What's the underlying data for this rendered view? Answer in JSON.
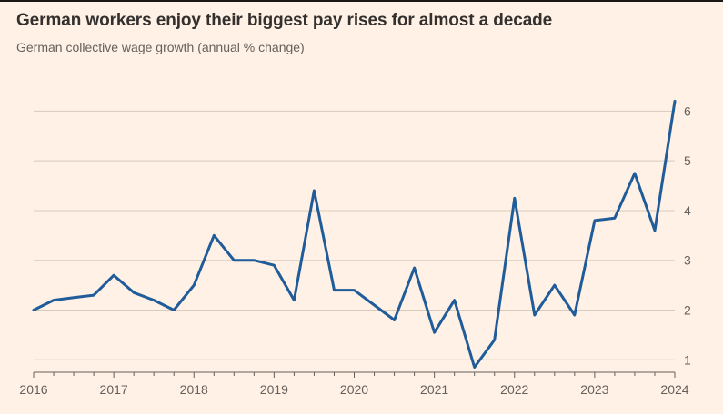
{
  "header": {
    "title": "German workers enjoy their biggest pay rises for almost a decade",
    "subtitle": "German collective wage growth (annual % change)"
  },
  "chart_data": {
    "type": "line",
    "title": "German workers enjoy their biggest pay rises for almost a decade",
    "subtitle": "German collective wage growth (annual % change)",
    "x_unit": "quarter",
    "x_start": 2016.0,
    "x_step": 0.25,
    "values": [
      2.0,
      2.2,
      2.25,
      2.3,
      2.7,
      2.35,
      2.2,
      2.0,
      2.5,
      3.5,
      3.0,
      3.0,
      2.9,
      2.2,
      4.4,
      2.4,
      2.4,
      2.1,
      1.8,
      2.85,
      1.55,
      2.2,
      0.85,
      1.4,
      4.25,
      1.9,
      2.5,
      1.9,
      3.8,
      3.85,
      4.75,
      3.6,
      6.2
    ],
    "x_tick_labels": [
      "2016",
      "2017",
      "2018",
      "2019",
      "2020",
      "2021",
      "2022",
      "2023",
      "2024"
    ],
    "y_ticks": [
      "1",
      "2",
      "3",
      "4",
      "5",
      "6"
    ],
    "xlim": [
      2016,
      2024
    ],
    "ylim": [
      0.75,
      6.5
    ],
    "y_axis_side": "right",
    "grid": true,
    "legend": "none",
    "colors": {
      "line": "#1f5c99",
      "background": "#FFF1E5",
      "grid": "#d8cbbd",
      "axis": "#66605C",
      "tick_label": "#66605C",
      "title_text": "#33302E",
      "subtitle_text": "#66605C"
    }
  }
}
